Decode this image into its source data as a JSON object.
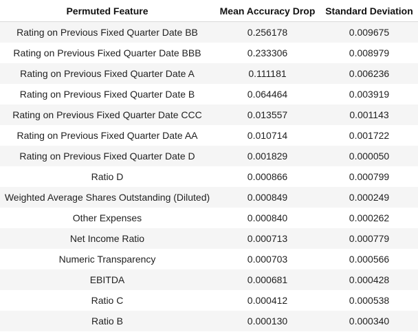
{
  "table": {
    "headers": [
      "Permuted Feature",
      "Mean Accuracy Drop",
      "Standard Deviation"
    ],
    "rows": [
      [
        "Rating on Previous Fixed Quarter Date BB",
        "0.256178",
        "0.009675"
      ],
      [
        "Rating on Previous Fixed Quarter Date BBB",
        "0.233306",
        "0.008979"
      ],
      [
        "Rating on Previous Fixed Quarter Date A",
        "0.111181",
        "0.006236"
      ],
      [
        "Rating on Previous Fixed Quarter Date B",
        "0.064464",
        "0.003919"
      ],
      [
        "Rating on Previous Fixed Quarter Date CCC",
        "0.013557",
        "0.001143"
      ],
      [
        "Rating on Previous Fixed Quarter Date AA",
        "0.010714",
        "0.001722"
      ],
      [
        "Rating on Previous Fixed Quarter Date D",
        "0.001829",
        "0.000050"
      ],
      [
        "Ratio D",
        "0.000866",
        "0.000799"
      ],
      [
        "Weighted Average Shares Outstanding (Diluted)",
        "0.000849",
        "0.000249"
      ],
      [
        "Other Expenses",
        "0.000840",
        "0.000262"
      ],
      [
        "Net Income Ratio",
        "0.000713",
        "0.000779"
      ],
      [
        "Numeric Transparency",
        "0.000703",
        "0.000566"
      ],
      [
        "EBITDA",
        "0.000681",
        "0.000428"
      ],
      [
        "Ratio C",
        "0.000412",
        "0.000538"
      ],
      [
        "Ratio B",
        "0.000130",
        "0.000340"
      ]
    ]
  }
}
